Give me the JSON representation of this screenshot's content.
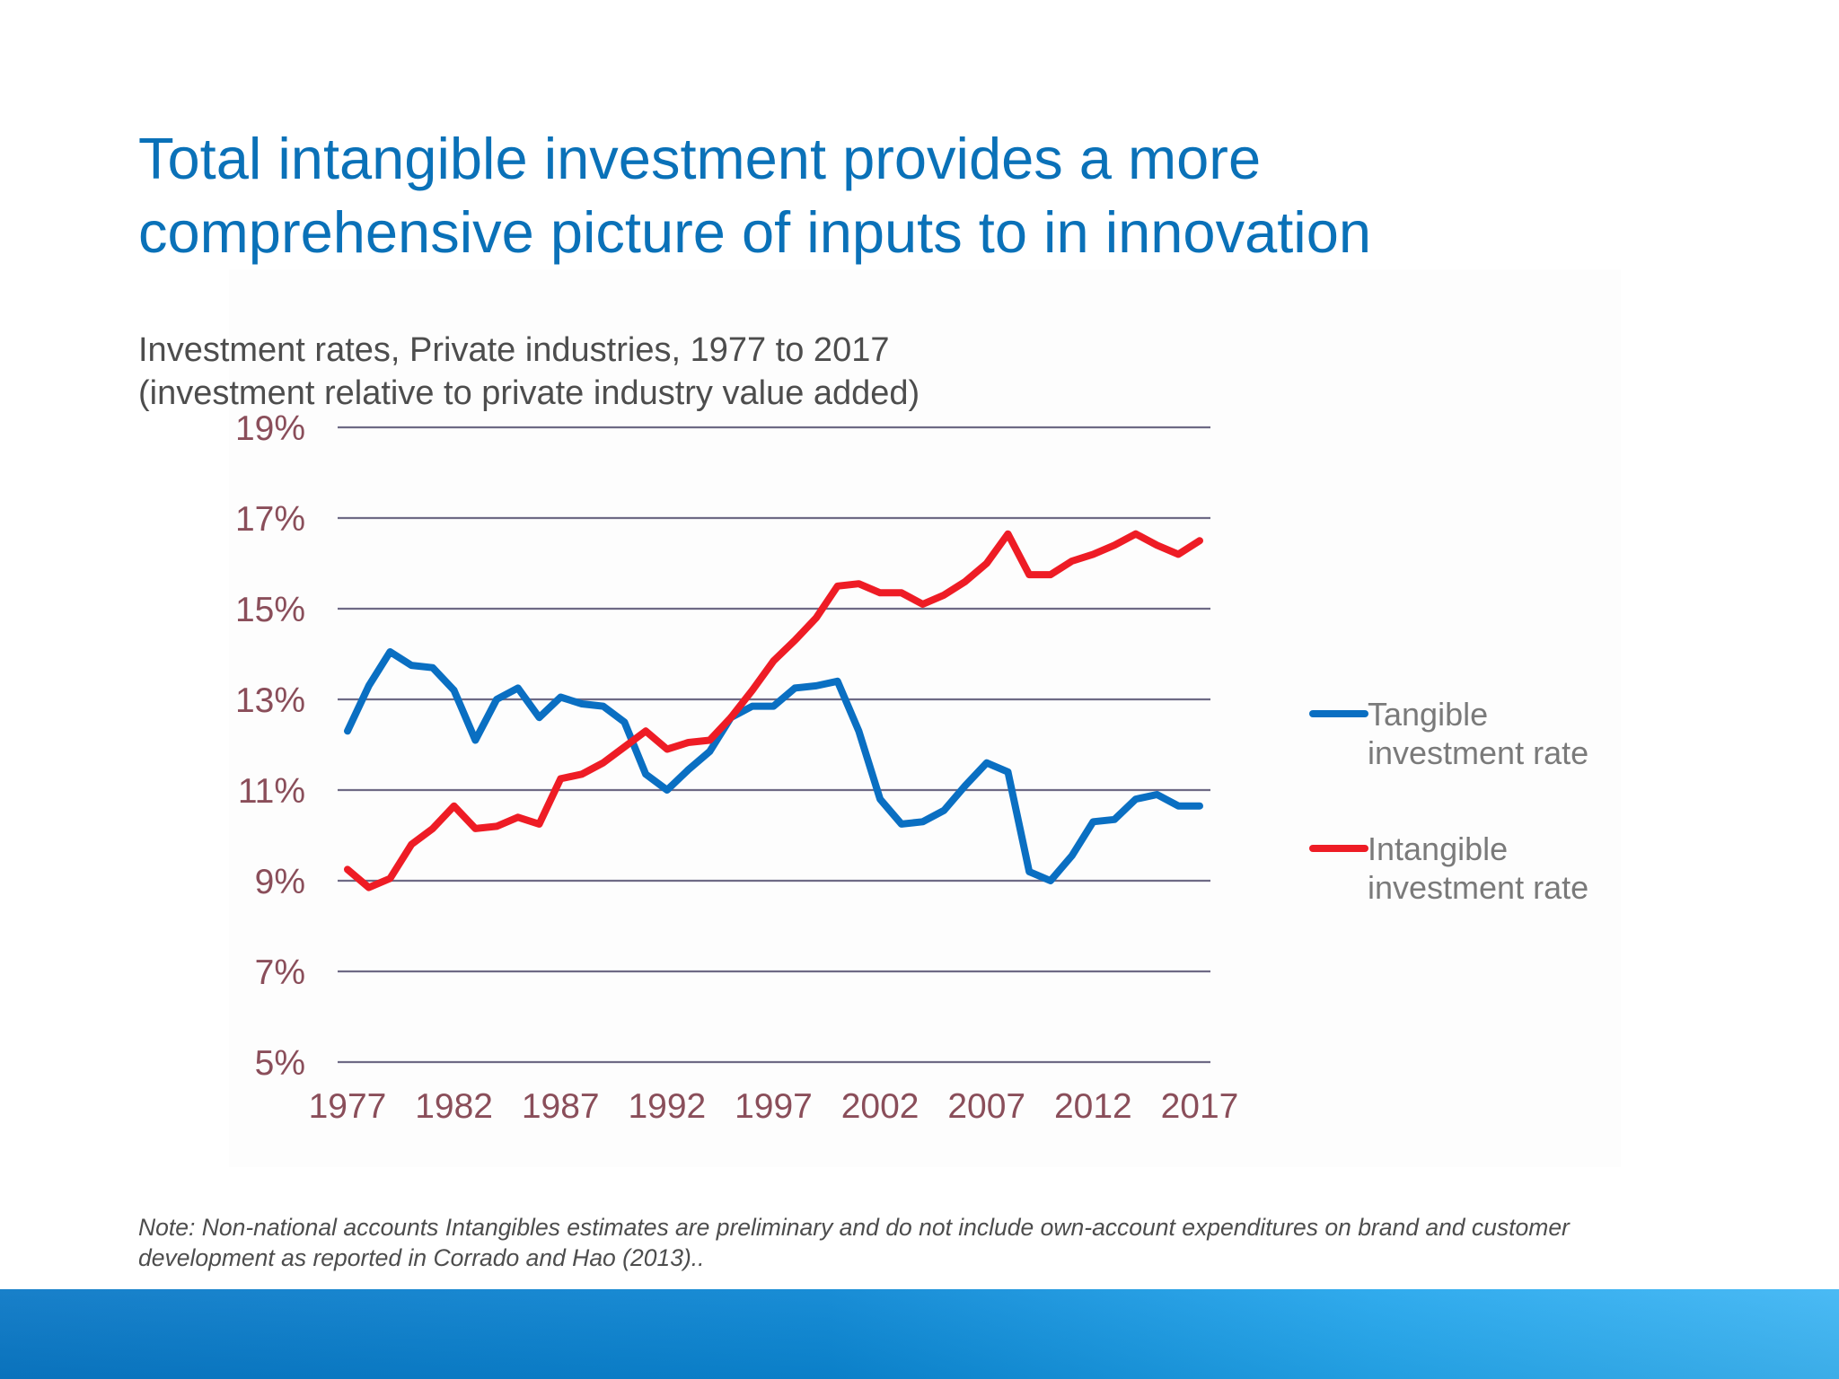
{
  "slide": {
    "title_line1": "Total intangible investment provides a more",
    "title_line2": "comprehensive picture of inputs to in innovation",
    "subtitle_line1": "Investment rates, Private industries, 1977 to 2017",
    "subtitle_line2": "(investment relative to private industry value added)",
    "footnote_line1": "Note: Non-national accounts Intangibles estimates are preliminary and do not include own-account expenditures on brand and customer",
    "footnote_line2": "development as reported in Corrado and Hao (2013).."
  },
  "colors": {
    "title": "#0a71b8",
    "tangible": "#0a6fc2",
    "intangible": "#ee1c25",
    "gridline": "#6e6a85",
    "tick_label": "#8a4e5a",
    "legend_label": "#7a7a7a"
  },
  "chart_data": {
    "type": "line",
    "title": "",
    "xlabel": "",
    "ylabel": "",
    "x": [
      1977,
      1978,
      1979,
      1980,
      1981,
      1982,
      1983,
      1984,
      1985,
      1986,
      1987,
      1988,
      1989,
      1990,
      1991,
      1992,
      1993,
      1994,
      1995,
      1996,
      1997,
      1998,
      1999,
      2000,
      2001,
      2002,
      2003,
      2004,
      2005,
      2006,
      2007,
      2008,
      2009,
      2010,
      2011,
      2012,
      2013,
      2014,
      2015,
      2016,
      2017
    ],
    "x_ticks": [
      1977,
      1982,
      1987,
      1992,
      1997,
      2002,
      2007,
      2012,
      2017
    ],
    "x_tick_labels": [
      "1977",
      "1982",
      "1987",
      "1992",
      "1997",
      "2002",
      "2007",
      "2012",
      "2017"
    ],
    "y_ticks": [
      5,
      7,
      9,
      11,
      13,
      15,
      17,
      19
    ],
    "y_tick_labels": [
      "5%",
      "7%",
      "9%",
      "11%",
      "13%",
      "15%",
      "17%",
      "19%"
    ],
    "ylim": [
      5,
      19
    ],
    "grid": true,
    "legend_position": "right",
    "series": [
      {
        "name": "Tangible investment rate",
        "legend_line1": "Tangible",
        "legend_line2": "investment rate",
        "values": [
          12.3,
          13.3,
          14.05,
          13.75,
          13.7,
          13.2,
          12.1,
          13.0,
          13.25,
          12.6,
          13.05,
          12.9,
          12.85,
          12.5,
          11.35,
          11.0,
          11.45,
          11.85,
          12.6,
          12.85,
          12.85,
          13.25,
          13.3,
          13.4,
          12.3,
          10.8,
          10.25,
          10.3,
          10.55,
          11.1,
          11.6,
          11.4,
          9.2,
          9.0,
          9.55,
          10.3,
          10.35,
          10.8,
          10.9,
          10.65,
          10.65
        ]
      },
      {
        "name": "Intangible investment rate",
        "legend_line1": "Intangible",
        "legend_line2": "investment rate",
        "values": [
          9.25,
          8.85,
          9.05,
          9.8,
          10.15,
          10.65,
          10.15,
          10.2,
          10.4,
          10.25,
          11.25,
          11.35,
          11.6,
          11.95,
          12.3,
          11.9,
          12.05,
          12.1,
          12.6,
          13.2,
          13.85,
          14.3,
          14.8,
          15.5,
          15.55,
          15.35,
          15.35,
          15.1,
          15.3,
          15.6,
          16.0,
          16.65,
          15.75,
          15.75,
          16.05,
          16.2,
          16.4,
          16.65,
          16.4,
          16.2,
          16.5
        ]
      }
    ]
  }
}
